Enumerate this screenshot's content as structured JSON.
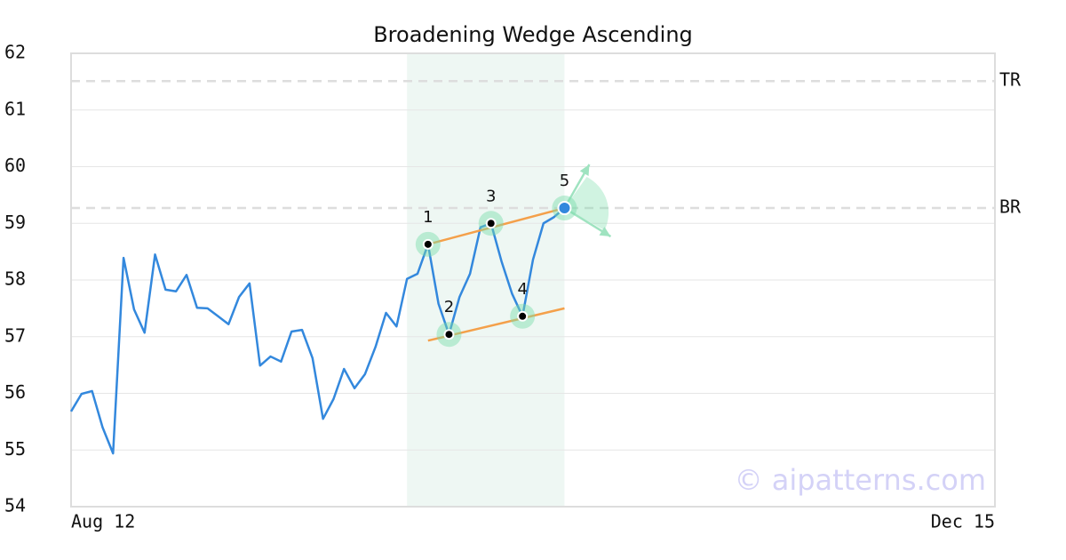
{
  "chart_data": {
    "type": "line",
    "title": "Broadening Wedge Ascending",
    "categories": [
      "Aug 12",
      null,
      null,
      null,
      null,
      null,
      null,
      null,
      null,
      null,
      null,
      null,
      null,
      null,
      null,
      null,
      null,
      null,
      null,
      null,
      null,
      null,
      null,
      null,
      null,
      null,
      null,
      null,
      null,
      null,
      null,
      null,
      null,
      null,
      null,
      null,
      null,
      null,
      null,
      null,
      null,
      null,
      null,
      null,
      null,
      null,
      null,
      null,
      null,
      null,
      null,
      null,
      null,
      null,
      null,
      null,
      null,
      null,
      null,
      null,
      null,
      null,
      null,
      null,
      null,
      null,
      null,
      null,
      null,
      null,
      null,
      null,
      null,
      null,
      null,
      null,
      null,
      null,
      null,
      null,
      null,
      null,
      null,
      null,
      null,
      null,
      null,
      null,
      "Dec 15"
    ],
    "values": [
      55.68,
      55.99,
      56.04,
      55.4,
      54.94,
      58.39,
      57.48,
      57.07,
      58.45,
      57.83,
      57.8,
      58.09,
      57.51,
      57.5,
      57.36,
      57.22,
      57.7,
      57.94,
      56.49,
      56.65,
      56.56,
      57.09,
      57.12,
      56.62,
      55.55,
      55.9,
      56.43,
      56.09,
      56.34,
      56.82,
      57.42,
      57.18,
      58.02,
      58.11,
      58.63,
      57.58,
      57.04,
      57.7,
      58.11,
      58.93,
      59.0,
      58.33,
      57.76,
      57.36,
      58.36,
      59.0,
      59.11,
      59.27,
      null,
      null,
      null,
      null,
      null,
      null,
      null,
      null,
      null,
      null,
      null,
      null,
      null,
      null,
      null,
      null,
      null,
      null,
      null,
      null,
      null,
      null,
      null,
      null,
      null,
      null,
      null,
      null,
      null,
      null,
      null,
      null,
      null,
      null,
      null,
      null,
      null,
      null,
      null,
      null,
      null
    ],
    "color": "#3388dd",
    "ylim": [
      54,
      62
    ],
    "yticks": [
      54,
      55,
      56,
      57,
      58,
      59,
      60,
      61,
      62
    ],
    "grid": true,
    "hlines": [
      {
        "name": "TR",
        "value": 61.51
      },
      {
        "name": "BR",
        "value": 59.27
      }
    ],
    "highlight": [
      32,
      47
    ],
    "pattern": {
      "points": [
        {
          "label": "1",
          "index": 34
        },
        {
          "label": "2",
          "index": 36
        },
        {
          "label": "3",
          "index": 40
        },
        {
          "label": "4",
          "index": 43
        },
        {
          "label": "5",
          "index": 47
        }
      ],
      "upper": {
        "x": [
          34,
          47
        ],
        "values": [
          58.63,
          59.27
        ]
      },
      "lower": {
        "x": [
          34,
          47
        ],
        "values": [
          56.93,
          57.5
        ]
      },
      "line_color": "#f4a04a"
    },
    "watermark": "© aipatterns.com"
  }
}
